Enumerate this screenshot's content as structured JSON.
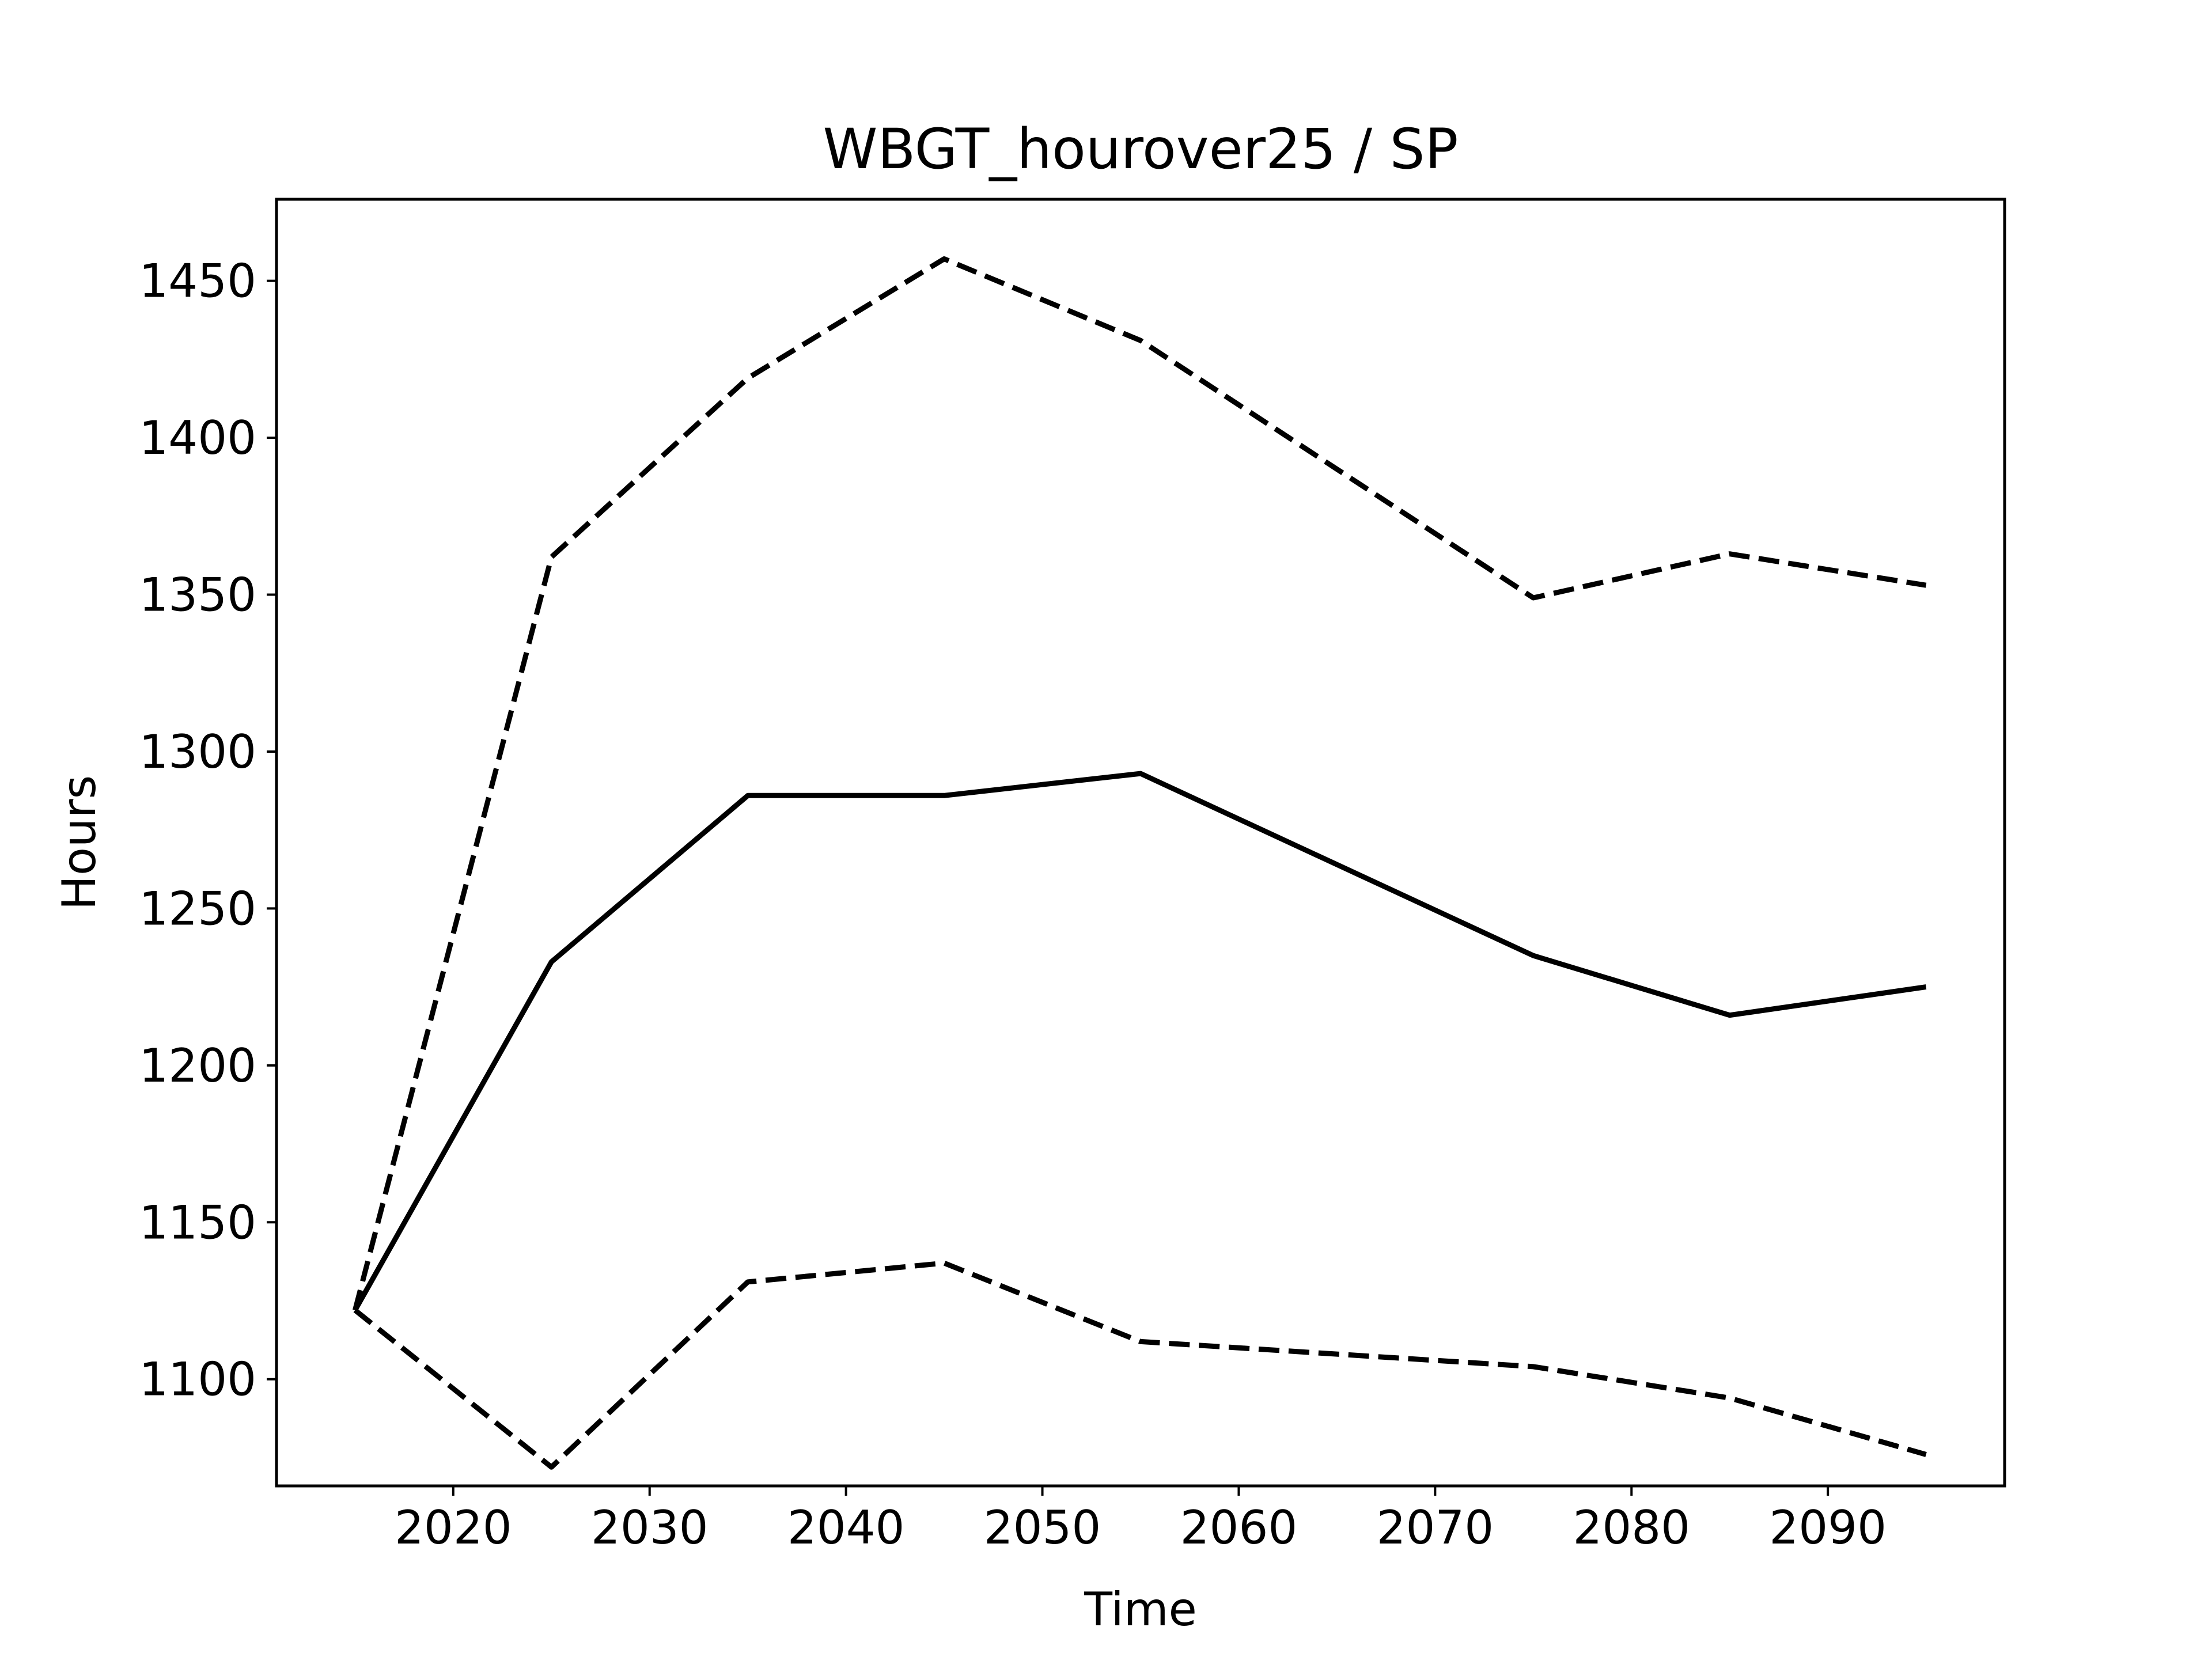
{
  "chart_data": {
    "type": "line",
    "title": "WBGT_hourover25 / SP",
    "xlabel": "Time",
    "ylabel": "Hours",
    "xlim": [
      2011,
      2099
    ],
    "ylim": [
      1066,
      1476
    ],
    "x_ticks": [
      2020,
      2030,
      2040,
      2050,
      2060,
      2070,
      2080,
      2090
    ],
    "y_ticks": [
      1100,
      1150,
      1200,
      1250,
      1300,
      1350,
      1400,
      1450
    ],
    "x": [
      2015,
      2025,
      2035,
      2045,
      2055,
      2075,
      2085,
      2095
    ],
    "series": [
      {
        "style": "solid",
        "values": [
          1122,
          1233,
          1286,
          1286,
          1293,
          1235,
          1216,
          1225
        ],
        "color": "#000000"
      },
      {
        "style": "dashed",
        "values": [
          1122,
          1362,
          1419,
          1457,
          1431,
          1349,
          1363,
          1353
        ],
        "color": "#000000"
      },
      {
        "style": "dashed",
        "values": [
          1122,
          1072,
          1131,
          1137,
          1112,
          1104,
          1094,
          1076
        ],
        "color": "#000000"
      }
    ],
    "grid": false,
    "legend": "none"
  }
}
